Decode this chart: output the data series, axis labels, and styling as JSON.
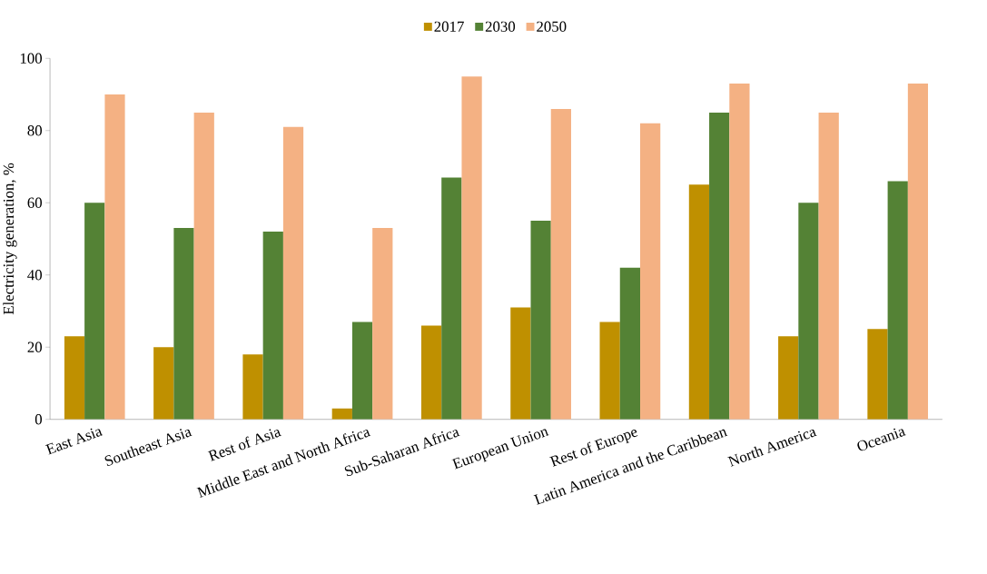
{
  "chart_data": {
    "type": "bar",
    "ylabel": "Electricity  generation, %",
    "categories": [
      "East Asia",
      "Southeast Asia",
      "Rest of Asia",
      "Middle East and North Africa",
      "Sub-Saharan Africa",
      "European Union",
      "Rest of Europe",
      "Latin America and the Caribbean",
      "North America",
      "Oceania"
    ],
    "series": [
      {
        "name": "2017",
        "color": "#bf9000",
        "values": [
          23,
          20,
          18,
          3,
          26,
          31,
          27,
          65,
          23,
          25
        ]
      },
      {
        "name": "2030",
        "color": "#548235",
        "values": [
          60,
          53,
          52,
          27,
          67,
          55,
          42,
          85,
          60,
          66
        ]
      },
      {
        "name": "2050",
        "color": "#f4b183",
        "values": [
          90,
          85,
          81,
          53,
          95,
          86,
          82,
          93,
          85,
          93
        ]
      }
    ],
    "ylim": [
      0,
      100
    ],
    "yticks": [
      0,
      20,
      40,
      60,
      80,
      100
    ],
    "grid": false,
    "legend": "top"
  }
}
